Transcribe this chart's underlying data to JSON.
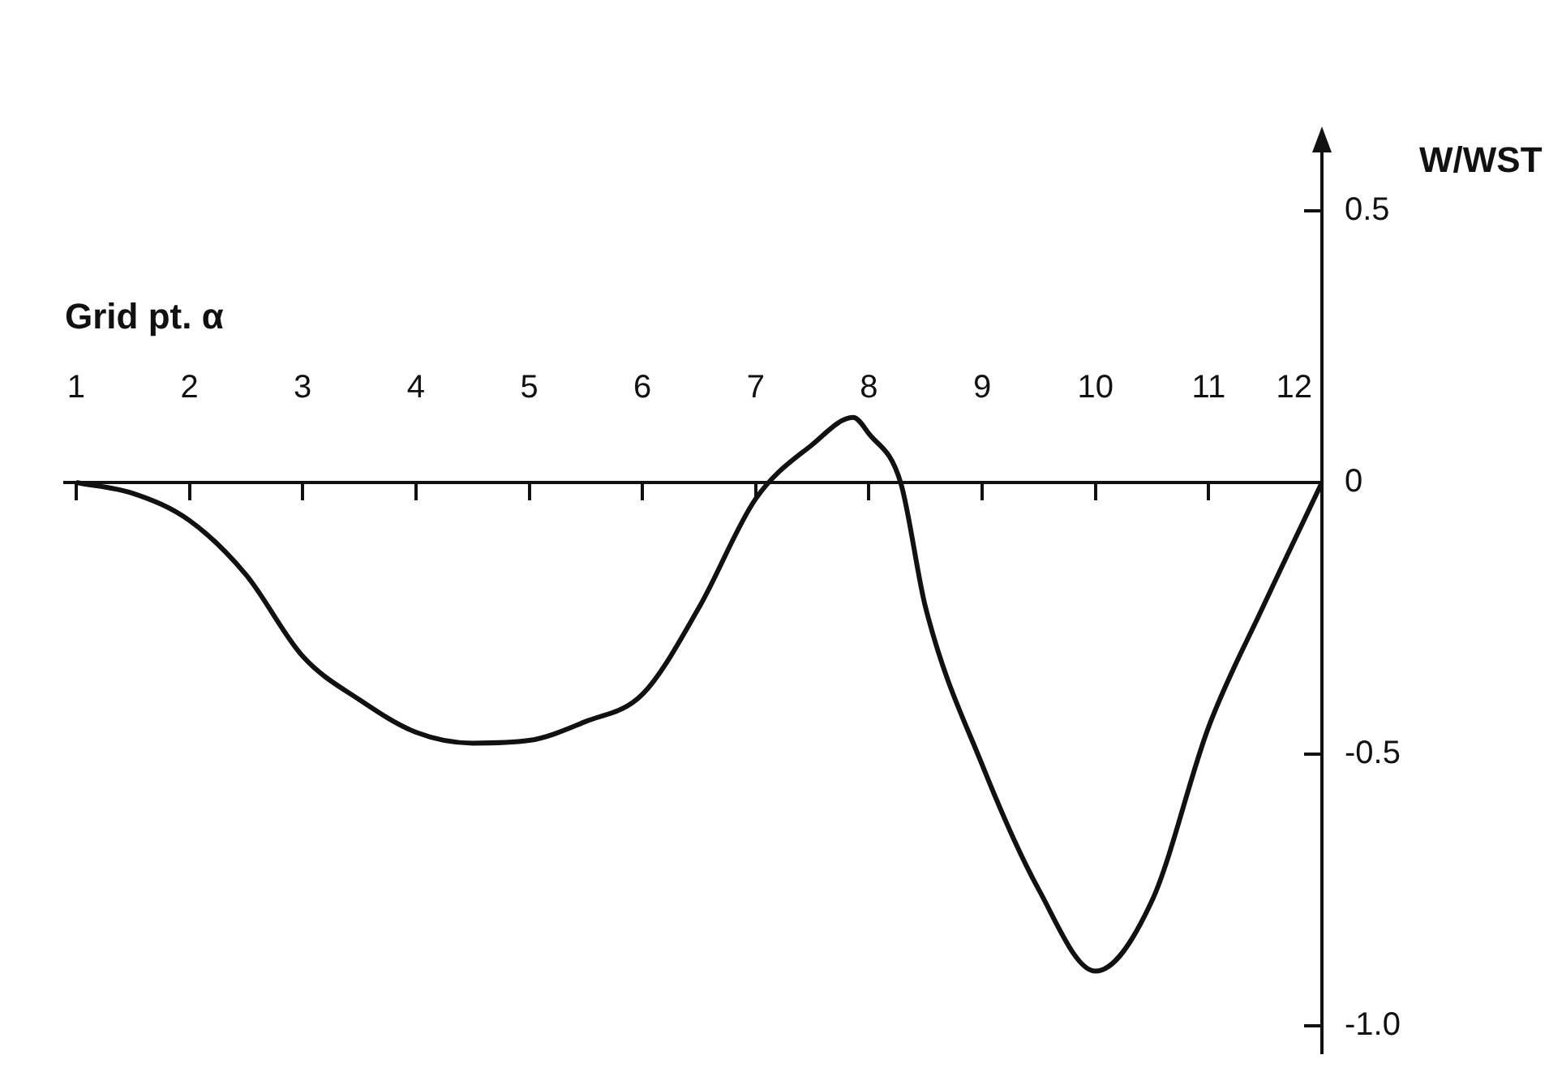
{
  "chart_data": {
    "type": "line",
    "xlabel": "Grid pt. α",
    "ylabel": "W/WST",
    "x": [
      1,
      1.5,
      2,
      2.5,
      3,
      3.5,
      4,
      4.5,
      5,
      5.5,
      6,
      6.5,
      7,
      7.5,
      7.86,
      8,
      8.28,
      8.5,
      9,
      9.5,
      10,
      10.5,
      11,
      11.5,
      12
    ],
    "series": [
      {
        "color": "#111111",
        "values": [
          0,
          -0.02,
          -0.07,
          -0.17,
          -0.32,
          -0.4,
          -0.46,
          -0.48,
          -0.475,
          -0.44,
          -0.39,
          -0.23,
          -0.03,
          0.07,
          0.12,
          0.09,
          0,
          -0.23,
          -0.52,
          -0.75,
          -0.9,
          -0.77,
          -0.45,
          -0.22,
          0
        ]
      }
    ],
    "xlim": [
      0.9,
      12
    ],
    "xticks": [
      1,
      2,
      3,
      4,
      5,
      6,
      7,
      8,
      9,
      10,
      11,
      12
    ],
    "ylim": [
      -1.05,
      0.62
    ],
    "yticks": [
      {
        "value": -1,
        "label": "-1.0"
      },
      -0.5,
      0,
      0.5
    ],
    "grid": false,
    "legend": false,
    "marker": "none",
    "line_style": "solid"
  }
}
